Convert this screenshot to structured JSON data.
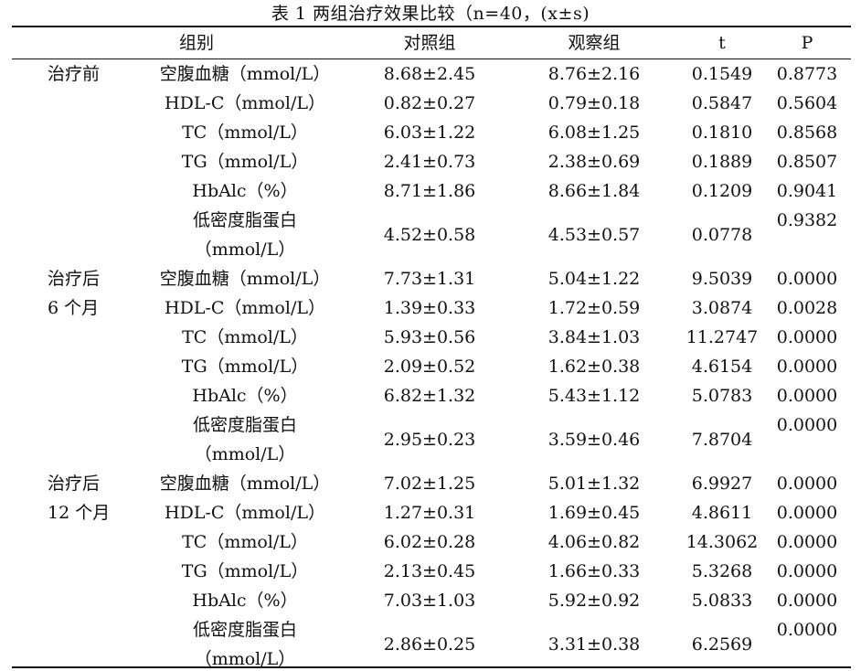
{
  "table": {
    "title": "表 1 两组治疗效果比较（n=40，(x±s)",
    "headers": [
      "组别",
      "对照组",
      "观察组",
      "t",
      "P"
    ],
    "groups": [
      {
        "label_lines": [
          "治疗前"
        ],
        "rows": [
          {
            "item": "空腹血糖（mmol/L）",
            "control": "8.68±2.45",
            "observe": "8.76±2.16",
            "t": "0.1549",
            "p": "0.8773"
          },
          {
            "item": "HDL-C（mmol/L）",
            "control": "0.82±0.27",
            "observe": "0.79±0.18",
            "t": "0.5847",
            "p": "0.5604"
          },
          {
            "item": "TC（mmol/L）",
            "control": "6.03±1.22",
            "observe": "6.08±1.25",
            "t": "0.1810",
            "p": "0.8568"
          },
          {
            "item": "TG（mmol/L）",
            "control": "2.41±0.73",
            "observe": "2.38±0.69",
            "t": "0.1889",
            "p": "0.8507"
          },
          {
            "item": "HbAlc（%）",
            "control": "8.71±1.86",
            "observe": "8.66±1.84",
            "t": "0.1209",
            "p": "0.9041"
          },
          {
            "item_lines": [
              "低密度脂蛋白",
              "（mmol/L）"
            ],
            "control": "4.52±0.58",
            "observe": "4.53±0.57",
            "t": "0.0778",
            "p": "0.9382"
          }
        ]
      },
      {
        "label_lines": [
          "治疗后",
          "6 个月"
        ],
        "rows": [
          {
            "item": "空腹血糖（mmol/L）",
            "control": "7.73±1.31",
            "observe": "5.04±1.22",
            "t": "9.5039",
            "p": "0.0000"
          },
          {
            "item": "HDL-C（mmol/L）",
            "control": "1.39±0.33",
            "observe": "1.72±0.59",
            "t": "3.0874",
            "p": "0.0028"
          },
          {
            "item": "TC（mmol/L）",
            "control": "5.93±0.56",
            "observe": "3.84±1.03",
            "t": "11.2747",
            "p": "0.0000"
          },
          {
            "item": "TG（mmol/L）",
            "control": "2.09±0.52",
            "observe": "1.62±0.38",
            "t": "4.6154",
            "p": "0.0000"
          },
          {
            "item": "HbAlc（%）",
            "control": "6.82±1.32",
            "observe": "5.43±1.12",
            "t": "5.0783",
            "p": "0.0000"
          },
          {
            "item_lines": [
              "低密度脂蛋白",
              "（mmol/L）"
            ],
            "control": "2.95±0.23",
            "observe": "3.59±0.46",
            "t": "7.8704",
            "p": "0.0000"
          }
        ]
      },
      {
        "label_lines": [
          "治疗后",
          "12 个月"
        ],
        "rows": [
          {
            "item": "空腹血糖（mmol/L）",
            "control": "7.02±1.25",
            "observe": "5.01±1.32",
            "t": "6.9927",
            "p": "0.0000"
          },
          {
            "item": "HDL-C（mmol/L）",
            "control": "1.27±0.31",
            "observe": "1.69±0.45",
            "t": "4.8611",
            "p": "0.0000"
          },
          {
            "item": "TC（mmol/L）",
            "control": "6.02±0.28",
            "observe": "4.06±0.82",
            "t": "14.3062",
            "p": "0.0000"
          },
          {
            "item": "TG（mmol/L）",
            "control": "2.13±0.45",
            "observe": "1.66±0.33",
            "t": "5.3268",
            "p": "0.0000"
          },
          {
            "item": "HbAlc（%）",
            "control": "7.03±1.03",
            "observe": "5.92±0.92",
            "t": "5.0833",
            "p": "0.0000"
          },
          {
            "item_lines": [
              "低密度脂蛋白",
              "（mmol/L）"
            ],
            "control": "2.86±0.25",
            "observe": "3.31±0.38",
            "t": "6.2569",
            "p": "0.0000"
          }
        ]
      }
    ]
  }
}
